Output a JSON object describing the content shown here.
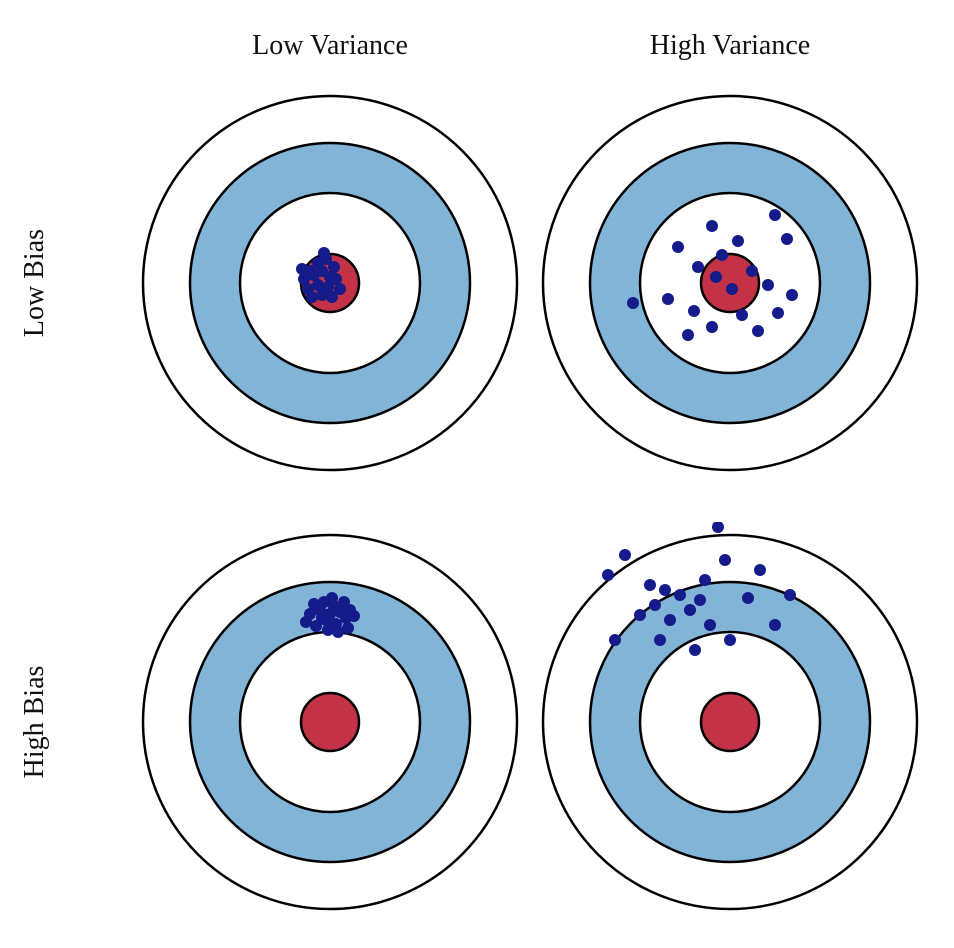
{
  "labels": {
    "columns": [
      "Low Variance",
      "High Variance"
    ],
    "rows": [
      "Low Bias",
      "High Bias"
    ]
  },
  "colors": {
    "background": "#ffffff",
    "outline": "#000000",
    "ring_blue": "#82b4d8",
    "center_red": "#c33246",
    "dot_navy": "#151b8a",
    "text": "#111111"
  },
  "target": {
    "stroke": "#000000",
    "stroke_width": 2.5,
    "rings": [
      {
        "name": "outer-circle",
        "radius": 187,
        "fill": "#ffffff"
      },
      {
        "name": "blue-ring",
        "radius": 140,
        "fill": "#82b4d8"
      },
      {
        "name": "inner-white",
        "radius": 90,
        "fill": "#ffffff"
      },
      {
        "name": "bullseye-red",
        "radius": 29,
        "fill": "#c33246"
      }
    ]
  },
  "dot": {
    "radius": 6,
    "color": "#151b8a"
  },
  "panels": [
    {
      "name": "low-bias-low-variance",
      "label": "Low Bias / Low Variance",
      "dots": [
        [
          -20,
          -12
        ],
        [
          -12,
          -20
        ],
        [
          -4,
          -24
        ],
        [
          4,
          -16
        ],
        [
          -26,
          -4
        ],
        [
          -16,
          -8
        ],
        [
          -8,
          -12
        ],
        [
          0,
          -6
        ],
        [
          -22,
          6
        ],
        [
          -12,
          2
        ],
        [
          -2,
          4
        ],
        [
          6,
          -4
        ],
        [
          -18,
          14
        ],
        [
          -8,
          12
        ],
        [
          2,
          14
        ],
        [
          -28,
          -14
        ],
        [
          10,
          6
        ],
        [
          -6,
          -30
        ]
      ]
    },
    {
      "name": "low-bias-high-variance",
      "label": "Low Bias / High Variance",
      "dots": [
        [
          45,
          -68
        ],
        [
          -18,
          -57
        ],
        [
          57,
          -44
        ],
        [
          -52,
          -36
        ],
        [
          -8,
          -28
        ],
        [
          -32,
          -16
        ],
        [
          22,
          -12
        ],
        [
          -14,
          -6
        ],
        [
          2,
          6
        ],
        [
          38,
          2
        ],
        [
          62,
          12
        ],
        [
          -97,
          20
        ],
        [
          -62,
          16
        ],
        [
          -36,
          28
        ],
        [
          12,
          32
        ],
        [
          -18,
          44
        ],
        [
          28,
          48
        ],
        [
          -42,
          52
        ],
        [
          8,
          -42
        ],
        [
          48,
          30
        ]
      ]
    },
    {
      "name": "high-bias-low-variance",
      "label": "High Bias / Low Variance",
      "dots": [
        [
          -14,
          -96
        ],
        [
          -4,
          -102
        ],
        [
          6,
          -98
        ],
        [
          16,
          -104
        ],
        [
          -20,
          -108
        ],
        [
          -10,
          -112
        ],
        [
          0,
          -108
        ],
        [
          10,
          -110
        ],
        [
          20,
          -112
        ],
        [
          -16,
          -118
        ],
        [
          -6,
          -120
        ],
        [
          4,
          -116
        ],
        [
          14,
          -120
        ],
        [
          24,
          -106
        ],
        [
          -2,
          -92
        ],
        [
          8,
          -90
        ],
        [
          -24,
          -100
        ],
        [
          18,
          -94
        ],
        [
          -8,
          -104
        ],
        [
          2,
          -124
        ]
      ]
    },
    {
      "name": "high-bias-high-variance",
      "label": "High Bias / High Variance",
      "dots": [
        [
          -12,
          -195
        ],
        [
          -105,
          -167
        ],
        [
          -122,
          -147
        ],
        [
          -5,
          -162
        ],
        [
          30,
          -152
        ],
        [
          -80,
          -137
        ],
        [
          -65,
          -132
        ],
        [
          -50,
          -127
        ],
        [
          -30,
          -122
        ],
        [
          -75,
          -117
        ],
        [
          -40,
          -112
        ],
        [
          -90,
          -107
        ],
        [
          -60,
          -102
        ],
        [
          -20,
          -97
        ],
        [
          18,
          -124
        ],
        [
          -115,
          -82
        ],
        [
          -70,
          -82
        ],
        [
          -35,
          -72
        ],
        [
          0,
          -82
        ],
        [
          45,
          -97
        ],
        [
          60,
          -127
        ],
        [
          -25,
          -142
        ]
      ]
    }
  ]
}
